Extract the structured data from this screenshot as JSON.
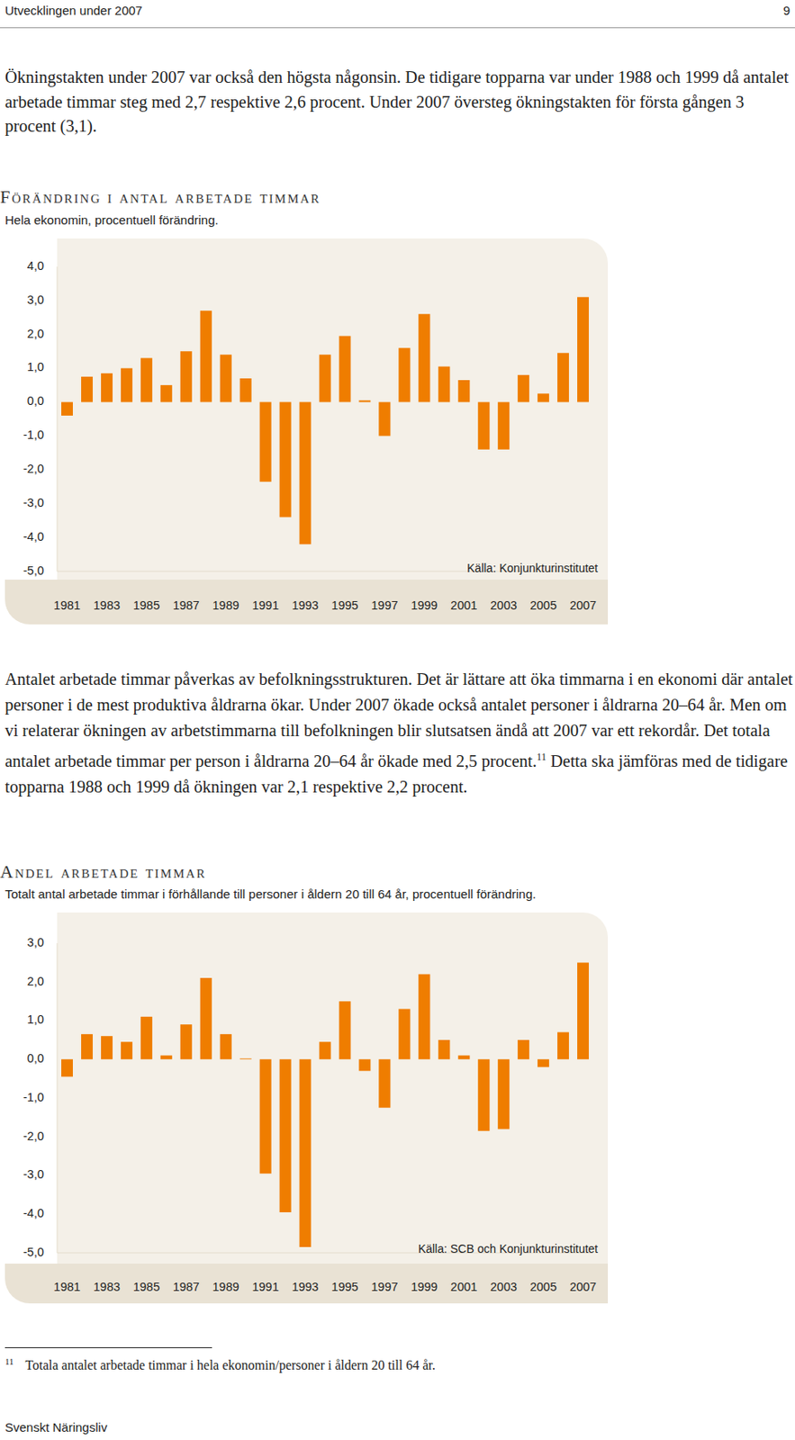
{
  "header": {
    "left": "Utvecklingen under 2007",
    "page_number": "9"
  },
  "paragraphs": [
    {
      "text": "Ökningstakten under 2007 var också den högsta någonsin. De tidigare topparna var under 1988 och 1999 då antalet arbetade timmar steg med 2,7 respektive 2,6 procent. Under 2007 översteg ökningstakten för första gången 3 procent (3,1)."
    },
    {
      "text": "Antalet arbetade timmar påverkas av befolkningsstrukturen. Det är lättare att öka timmarna i en ekonomi där antalet personer i de mest produktiva åldrarna ökar. Under 2007 ökade också antalet personer i åldrarna 20–64 år. Men om vi relaterar ökningen av arbetstimmarna till befolkningen blir slutsatsen ändå att 2007 var ett rekordår. Det totala antalet arbetade timmar per person i åldrarna 20–64 år ökade med 2,5 procent.",
      "note_ref": "11",
      "text_after": "Detta ska jämföras med de tidigare topparna 1988 och 1999 då ökningen var 2,1 respektive 2,2 procent."
    }
  ],
  "chart_data": [
    {
      "type": "bar",
      "title": "Förändring i antal arbetade timmar",
      "subtitle": "Hela ekonomin, procentuell förändring.",
      "source": "Källa: Konjunkturinstitutet",
      "categories": [
        "1981",
        null,
        "1983",
        null,
        "1985",
        null,
        "1987",
        null,
        "1989",
        null,
        "1991",
        null,
        "1993",
        null,
        "1995",
        null,
        "1997",
        null,
        "1999",
        null,
        "2001",
        null,
        "2003",
        null,
        "2005",
        null,
        "2007"
      ],
      "values": [
        -0.4,
        0.75,
        0.85,
        1.0,
        1.3,
        0.5,
        1.5,
        2.7,
        1.4,
        0.7,
        -2.35,
        -3.4,
        -4.2,
        1.4,
        1.95,
        0.05,
        -1.0,
        1.6,
        2.6,
        1.05,
        0.65,
        -1.4,
        -1.4,
        0.8,
        0.25,
        1.45,
        3.1
      ],
      "color": "#ef7d00",
      "ylim": [
        -5,
        4
      ],
      "yticks": [
        {
          "value": -5,
          "label": "-5,0"
        },
        {
          "value": -4,
          "label": "-4,0"
        },
        {
          "value": -3,
          "label": "-3,0"
        },
        {
          "value": -2,
          "label": "-2,0"
        },
        {
          "value": -1,
          "label": "-1,0"
        },
        {
          "value": 0,
          "label": "0,0"
        },
        {
          "value": 1,
          "label": "1,0"
        },
        {
          "value": 2,
          "label": "2,0"
        },
        {
          "value": 3,
          "label": "3,0"
        },
        {
          "value": 4,
          "label": "4,0"
        }
      ],
      "grid": false
    },
    {
      "type": "bar",
      "title": "Andel arbetade timmar",
      "subtitle": "Totalt antal arbetade timmar i förhållande till personer i åldern 20 till 64 år, procentuell förändring.",
      "source": "Källa: SCB och Konjunkturinstitutet",
      "categories": [
        "1981",
        null,
        "1983",
        null,
        "1985",
        null,
        "1987",
        null,
        "1989",
        null,
        "1991",
        null,
        "1993",
        null,
        "1995",
        null,
        "1997",
        null,
        "1999",
        null,
        "2001",
        null,
        "2003",
        null,
        "2005",
        null,
        "2007"
      ],
      "values": [
        -0.45,
        0.65,
        0.6,
        0.45,
        1.1,
        0.1,
        0.9,
        2.1,
        0.65,
        0.02,
        -2.95,
        -3.95,
        -4.85,
        0.45,
        1.5,
        -0.3,
        -1.25,
        1.3,
        2.2,
        0.5,
        0.1,
        -1.85,
        -1.8,
        0.5,
        -0.2,
        0.7,
        2.5
      ],
      "color": "#ef7d00",
      "ylim": [
        -5,
        3
      ],
      "yticks": [
        {
          "value": -5,
          "label": "-5,0"
        },
        {
          "value": -4,
          "label": "-4,0"
        },
        {
          "value": -3,
          "label": "-3,0"
        },
        {
          "value": -2,
          "label": "-2,0"
        },
        {
          "value": -1,
          "label": "-1,0"
        },
        {
          "value": 0,
          "label": "0,0"
        },
        {
          "value": 1,
          "label": "1,0"
        },
        {
          "value": 2,
          "label": "2,0"
        },
        {
          "value": 3,
          "label": "3,0"
        }
      ],
      "grid": false
    }
  ],
  "footnote": {
    "number": "11",
    "text": "Totala antalet arbetade timmar i hela ekonomin/personer i åldern 20 till 64 år."
  },
  "footer": "Svenskt Näringsliv"
}
